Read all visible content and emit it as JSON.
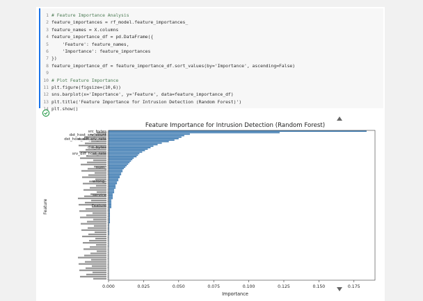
{
  "code_cell": {
    "lines": [
      {
        "num": "1",
        "text": "# Feature Importance Analysis",
        "comment": true
      },
      {
        "num": "2",
        "text": "feature_importances = rf_model.feature_importances_",
        "comment": false
      },
      {
        "num": "3",
        "text": "feature_names = X.columns",
        "comment": false
      },
      {
        "num": "4",
        "text": "feature_importance_df = pd.DataFrame({",
        "comment": false
      },
      {
        "num": "5",
        "text": "    'Feature': feature_names,",
        "comment": false
      },
      {
        "num": "6",
        "text": "    'Importance': feature_importances",
        "comment": false
      },
      {
        "num": "7",
        "text": "})",
        "comment": false
      },
      {
        "num": "8",
        "text": "feature_importance_df = feature_importance_df.sort_values(by='Importance', ascending=False)",
        "comment": false
      },
      {
        "num": "9",
        "text": "",
        "comment": false
      },
      {
        "num": "10",
        "text": "# Plot Feature Importance",
        "comment": true
      },
      {
        "num": "11",
        "text": "plt.figure(figsize=(10,6))",
        "comment": false
      },
      {
        "num": "12",
        "text": "sns.barplot(x='Importance', y='Feature', data=feature_importance_df)",
        "comment": false
      },
      {
        "num": "13",
        "text": "plt.title('Feature Importance for Intrusion Detection (Random Forest)')",
        "comment": false
      },
      {
        "num": "14",
        "text": "plt.show()",
        "comment": false
      }
    ]
  },
  "status_icon": "check-circle-icon",
  "colors": {
    "bar": "#3a78b0",
    "status": "#2e9e4f",
    "accent": "#1a73e8"
  },
  "chart_data": {
    "type": "bar",
    "orientation": "horizontal",
    "title": "Feature Importance for Intrusion Detection (Random Forest)",
    "xlabel": "Importance",
    "ylabel": "Feature",
    "xlim": [
      0,
      0.19
    ],
    "xticks": [
      "0.000",
      "0.025",
      "0.050",
      "0.075",
      "0.100",
      "0.125",
      "0.150",
      "0.175"
    ],
    "xtick_values": [
      0,
      0.025,
      0.05,
      0.075,
      0.1,
      0.125,
      0.15,
      0.175
    ],
    "visible_labels": [
      "src_bytes",
      "dst_host_srv_count",
      "dst_host_diff_srv_rate",
      "dst_bytes",
      "srv_diff_host_rate",
      "num_",
      "wrong_",
      "service",
      "Feature"
    ],
    "values": [
      0.184,
      0.122,
      0.058,
      0.054,
      0.052,
      0.05,
      0.047,
      0.043,
      0.038,
      0.035,
      0.032,
      0.03,
      0.028,
      0.026,
      0.024,
      0.022,
      0.021,
      0.02,
      0.018,
      0.017,
      0.016,
      0.015,
      0.014,
      0.013,
      0.012,
      0.011,
      0.01,
      0.01,
      0.009,
      0.009,
      0.008,
      0.008,
      0.007,
      0.007,
      0.006,
      0.006,
      0.005,
      0.005,
      0.005,
      0.004,
      0.004,
      0.004,
      0.003,
      0.003,
      0.003,
      0.003,
      0.002,
      0.002,
      0.002,
      0.002,
      0.002,
      0.002,
      0.001,
      0.001,
      0.001,
      0.001,
      0.001,
      0.001,
      0.001,
      0.001,
      0.001,
      0.001,
      0.0005,
      0.0005,
      0.0005,
      0.0005,
      0.0005,
      0.0005,
      0.0005,
      0.0005,
      0.0003,
      0.0003,
      0.0003,
      0.0003,
      0.0003,
      0.0003,
      0.0003,
      0.0003,
      0.0002,
      0.0002,
      0.0002,
      0.0002,
      0.0002,
      0.0002,
      0.0002,
      0.0002,
      0.0001,
      0.0001,
      0.0001,
      0.0001,
      0.0001,
      0.0001,
      0.0001,
      0.0001,
      0.0001,
      0.0001,
      0.0001,
      0.0001,
      0.0001,
      0.0001
    ],
    "grid": false
  }
}
